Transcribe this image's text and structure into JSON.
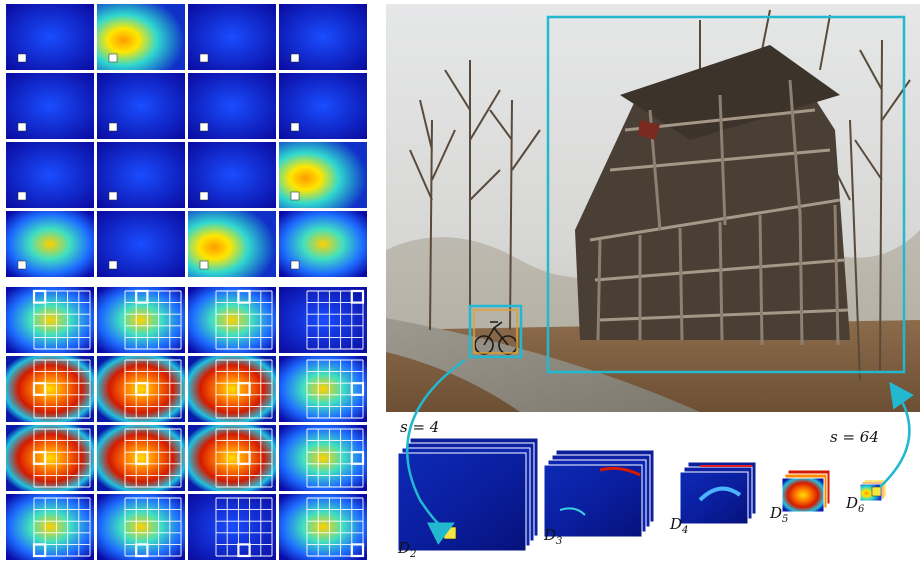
{
  "labels": {
    "s_small": "s = 4",
    "s_large": "s = 64",
    "stages": [
      {
        "base": "D",
        "sub": "2"
      },
      {
        "base": "D",
        "sub": "3"
      },
      {
        "base": "D",
        "sub": "4"
      },
      {
        "base": "D",
        "sub": "5"
      },
      {
        "base": "D",
        "sub": "6"
      }
    ]
  },
  "colors": {
    "highlight_box": "#22b8cf",
    "small_box_inner": "#e0a032",
    "grid_lines": "#ffffff",
    "background": "#ffffff"
  },
  "panels": {
    "top_grid": {
      "rows": 4,
      "cols": 4
    },
    "bottom_grid": {
      "rows": 4,
      "cols": 4,
      "overlay_cells": 5
    }
  },
  "icons": [
    "bicycle-icon",
    "barn-structure",
    "heatmap-tile",
    "feature-map-stack",
    "curved-arrow-icon"
  ]
}
